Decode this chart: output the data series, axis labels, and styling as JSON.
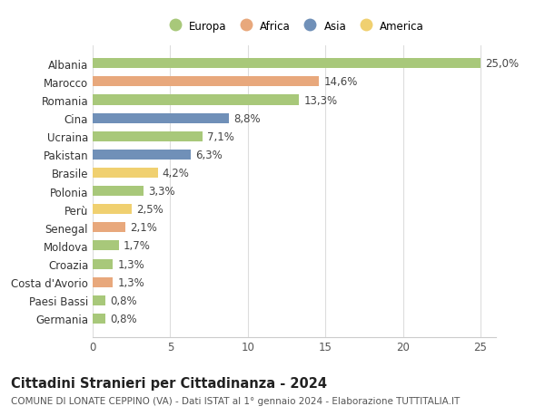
{
  "countries": [
    "Albania",
    "Marocco",
    "Romania",
    "Cina",
    "Ucraina",
    "Pakistan",
    "Brasile",
    "Polonia",
    "Perù",
    "Senegal",
    "Moldova",
    "Croazia",
    "Costa d'Avorio",
    "Paesi Bassi",
    "Germania"
  ],
  "values": [
    25.0,
    14.6,
    13.3,
    8.8,
    7.1,
    6.3,
    4.2,
    3.3,
    2.5,
    2.1,
    1.7,
    1.3,
    1.3,
    0.8,
    0.8
  ],
  "labels": [
    "25,0%",
    "14,6%",
    "13,3%",
    "8,8%",
    "7,1%",
    "6,3%",
    "4,2%",
    "3,3%",
    "2,5%",
    "2,1%",
    "1,7%",
    "1,3%",
    "1,3%",
    "0,8%",
    "0,8%"
  ],
  "continents": [
    "Europa",
    "Africa",
    "Europa",
    "Asia",
    "Europa",
    "Asia",
    "America",
    "Europa",
    "America",
    "Africa",
    "Europa",
    "Europa",
    "Africa",
    "Europa",
    "Europa"
  ],
  "colors": {
    "Europa": "#a8c87a",
    "Africa": "#e8a87c",
    "Asia": "#7090b8",
    "America": "#f0d070"
  },
  "legend_order": [
    "Europa",
    "Africa",
    "Asia",
    "America"
  ],
  "xlim": [
    0,
    26
  ],
  "xticks": [
    0,
    5,
    10,
    15,
    20,
    25
  ],
  "title": "Cittadini Stranieri per Cittadinanza - 2024",
  "subtitle": "COMUNE DI LONATE CEPPINO (VA) - Dati ISTAT al 1° gennaio 2024 - Elaborazione TUTTITALIA.IT",
  "background_color": "#ffffff",
  "grid_color": "#dddddd",
  "bar_height": 0.55,
  "label_fontsize": 8.5,
  "tick_fontsize": 8.5,
  "title_fontsize": 10.5,
  "subtitle_fontsize": 7.5
}
